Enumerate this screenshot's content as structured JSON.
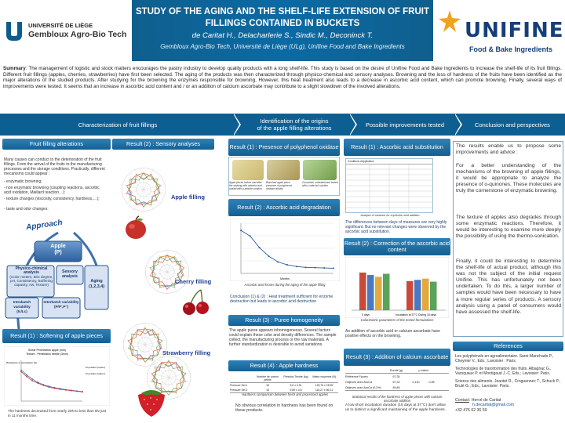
{
  "header": {
    "uliege_line1": "UNIVERSITÉ DE LIÈGE",
    "uliege_line2": "Gembloux Agro-Bio Tech",
    "title_line1": "STUDY OF THE AGING  AND THE SHELF-LIFE EXTENSION OF FRUIT",
    "title_line2": "FILLINGS CONTAINED IN BUCKETS",
    "authors": "de Caritat H., Delacharlerie S., Sindic M., Deconinck T.",
    "affiliation": "Gembloux Agro-Bio Tech, Université  de Liège (ULg), Unifine Food and Bake Ingredients",
    "unifine_word": "UNIFINE",
    "unifine_tag": "Food & Bake Ingredients"
  },
  "summary": {
    "label": "Summary",
    "text": ": The management of logistic and stock matters encourages the pastry industry to develop quality products with a long shelf-life. This study is based on the desire of Unifine Food and Bake Ingredients to increase the shelf-life of its fruit fillings. Different fruit fillings (apples, cherries, strawberries) have first been selected. The aging of the products was then characterized through physico-chemical and sensory analyses. Browning and the loss of hardness of the fruits have been identified as the major alterations of the studied products. After studying for the browning the enzymes responsible for browning. However, this heat treatment also leads to a decrease in ascorbic acid content, which can promote browning. Finally, several ways of improvements were tested. It seems that an increase in ascorbic acid content and / or an addition of calcium ascorbate may contribute to a slight slowdown of the involved alterations."
  },
  "nav": {
    "item1": "Characterization of fruit fillings",
    "item2_line1": "Identification of the origins",
    "item2_line2": "of the apple filling alterations",
    "item3": "Possible improvements tested",
    "item4": "Conclusion and perspectives"
  },
  "col1": {
    "header": "Fruit filling alterations",
    "intro": "Many causes can conduct to the deterioration of the fruit fillings.  From the arrival of the fruits to the manufacturing processes and the storage conditions. Practically, different mecanisms could appear :",
    "bullet1": "- enzymatic browning;",
    "bullet2": "- non enzymatic browning (coupling reactions, ascorbic acid    oxidation, Maillard reaction…);",
    "bullet3": "- texture changes (viscosity, consistency, hardness,…);",
    "bullet4": "- taste and odor changes.",
    "approach": "Approach",
    "node_apple_line1": "Apple",
    "node_apple_line2": "(P)",
    "node_physchem": "Physico-chimical analysis",
    "node_physchem_detail": "(Color meters, Brix degree, pH, Consistency, Buffering capacity, Aw, Texture)",
    "node_sensory": "Sensory analysis",
    "node_aging_line1": "Aging",
    "node_aging_line2": "(1,2,3,4)",
    "node_intra_line1": "Intrabatch variability",
    "node_intra_line2": "(Ic/Lc)",
    "node_inter_line1": "Interbatch variability",
    "node_inter_line2": "(P/P',P'')",
    "result1_header": "Result (1) : Softening of apple pieces",
    "chart_title": "Shear Penetration apple (mm)",
    "chart_subtitle": "Texture - Penetration needle (3mm)",
    "chart_ylabel": "Resistance to penetration (N)",
    "chart_legend1": "Al position (Lower)",
    "chart_legend2": "Al position (Upper)",
    "result1_text": "The hardness decreased from nearly 20N to less than 6N just in 11 months time."
  },
  "col2": {
    "header": "Result (2) : Sensory analyses",
    "label_apple": "Apple filling",
    "label_cherry": "Cherry filling",
    "label_strawberry": "Strawberry filling"
  },
  "col3": {
    "poly_header": "Result (1) : Presence of polyphenol oxidase",
    "photo_cap1": "Apple pieces before and after the staining with catechol and sealed with p-anisole solution",
    "photo_cap2": "Blanched apple piece presence of polyphenol oxidase activity",
    "photo_cap3": "Cucumber, untreated and tested with a catechol solution",
    "asc_header": "Result (2) : Ascorbic acid degradation",
    "asc_xlabel": "Months",
    "asc_caption": "Ascorbic acid losses during the aging of the apple filling",
    "conclusion": "Conclusion (1) & (2) : Heat treatment sufficient for enzyme destruction but leads to ascorbic acid destruction",
    "puree_header": "Result (3) : Puree homogeneity",
    "puree_text": "The apple puree appears inhomogeneous. Several factors could explain these color and density differences. The sample collect, the manufacturing process or the raw materials. A further standardization is desirable to avoid variations.",
    "hardness_header": "Result (4) : Apple hardness",
    "hard_col1": "Nombre de coeurs pételé",
    "hard_col2": "Pression Tendre (kg)",
    "hard_col3": "Valeur moyenne (N)",
    "hard_r1c1": "Pressure Set 1",
    "hard_r1c2": "18",
    "hard_r1c3": "9,6 ± 0,91",
    "hard_r1c4": "125,76 ± 25,99",
    "hard_r2c1": "Pressure Set 2",
    "hard_r2c2": "16",
    "hard_r2c3": "9,89 ± 0,6",
    "hard_r2c4": "116,27 ± 86,21",
    "hard_caption": "Hardness comparison between  fresh and processed apples",
    "hard_text": "No obvious correlation in hardness has been found on these products."
  },
  "col4": {
    "asc_sub_header": "Result (1) : Ascorbic acid substitution",
    "tbl_title": "Conditions d'application",
    "tbl_cap": "Analysis of variance for erythorbic acid addition",
    "tbl_text": "The differences between days of measures are very highly significant. But no relevant changes were observed by the ascorbic acid substitution.",
    "corr_header": "Result (2) : Correction of the ascorbic acid content",
    "corr_x1": "0 days",
    "corr_x2": "Incubation at 37°C During 15 days",
    "corr_caption": "Colorimetric parameters of the tested formulations",
    "corr_text": "An addition of ascorbic acid or calcium ascorbate have positive effects on the browning.",
    "calc_header": "Result (3) : Addition of calcium ascorbate",
    "calc_hdr_col": "Dureté (g)",
    "calc_hdr_p": "p-valeur",
    "calc_r1": "Référence  Fpurex",
    "calc_r1v": "67,35",
    "calc_r2": "Objinces avec AscCa",
    "calc_r2v": "67,33",
    "calc_r3": "Objinces avec AscCa (0,3%)",
    "calc_r3v": "89,85",
    "calc_p1": "0,130",
    "calc_p2": "0,98",
    "calc_caption": "Statistical results of the hardness of apple pieces with calcium ascorbate addition",
    "calc_text": "A low short incubation duration (15 days at 37°C) don't allow us to  distinct a significant  maintaining of the apple hardness."
  },
  "col5": {
    "conclusion_p1": "The results enable us to propose some improvements and advice :",
    "conclusion_p2": "For a better understanding of the mechanisms of the browning of apple fillings, it would be appropriate to analyze the presence of o-quinones. These molecules are truly the cornerstone of enzymatic browning.",
    "conclusion_p3": "The texture of apples also degrades through some enzymatic reactions. Therefore, it would be interesting to examine more deeply the possibility of using the thermo-sonication.",
    "conclusion_p4": "Finally, it could be interesting to determine the shelf-life of actual product, although this was not the subject of the initial request Unifine. This has unfortunately not been undertaken. To do this, a larger number of samples would have been necessary to have a more regular series of products. A sensory analysis using a panel of consumers would have assessed the shelf-life.",
    "references_header": "References",
    "ref1": "Les polyphénols en agroalimentaire. Sarni-Manchado P., Cheynier V., Eds.; Lavoisier : Paris.",
    "ref2": "Technologies de transformation des fruits. Albagnac G., Varoquaux P. et Montigaud J.-C. Eds.; Lavoisier: Paris.",
    "ref3": "Science des aliments. Jeantet R., Croguennec T., Schuck P., Brulé G., Eds.; Lavoisier: Paris.",
    "contact_label": "Contact",
    "contact_name": ": Hervé de Caritat",
    "contact_email": "h.decaritat@gmail.com",
    "contact_phone": "+32 476 62 36 59"
  },
  "chart_data": [
    {
      "type": "line",
      "title": "Shear Penetration apple (mm)",
      "subtitle": "Texture - Penetration needle (3mm)",
      "ylabel": "Resistance to penetration (N)",
      "x": [
        0,
        1,
        2,
        3,
        4,
        5,
        6,
        7,
        8,
        9,
        10,
        11
      ],
      "series": [
        {
          "name": "Al position (Lower)",
          "values": [
            19,
            16,
            13.5,
            11.5,
            10,
            9,
            8.2,
            7.6,
            7,
            6.6,
            6.2,
            5.8
          ]
        },
        {
          "name": "Al position (Upper)",
          "values": [
            18,
            15,
            12.5,
            11,
            9.6,
            8.6,
            7.8,
            7.2,
            6.8,
            6.4,
            6,
            5.6
          ]
        }
      ],
      "ylim": [
        0,
        25
      ]
    },
    {
      "type": "line",
      "xlabel": "Months",
      "x": [
        0,
        1,
        2,
        3,
        4,
        5,
        6,
        7,
        8,
        9,
        10
      ],
      "series": [
        {
          "values": [
            300,
            260,
            180,
            120,
            80,
            60,
            48,
            42,
            40,
            38,
            36
          ]
        }
      ],
      "ylim": [
        0,
        350
      ]
    },
    {
      "type": "bar",
      "categories": [
        "0 days",
        "Incubation at 37°C During 15 days"
      ],
      "series": [
        {
          "values": [
            62,
            48
          ]
        },
        {
          "values": [
            58,
            50
          ]
        },
        {
          "values": [
            55,
            52
          ]
        },
        {
          "values": [
            60,
            47
          ]
        }
      ],
      "ylim": [
        0,
        80
      ]
    }
  ]
}
